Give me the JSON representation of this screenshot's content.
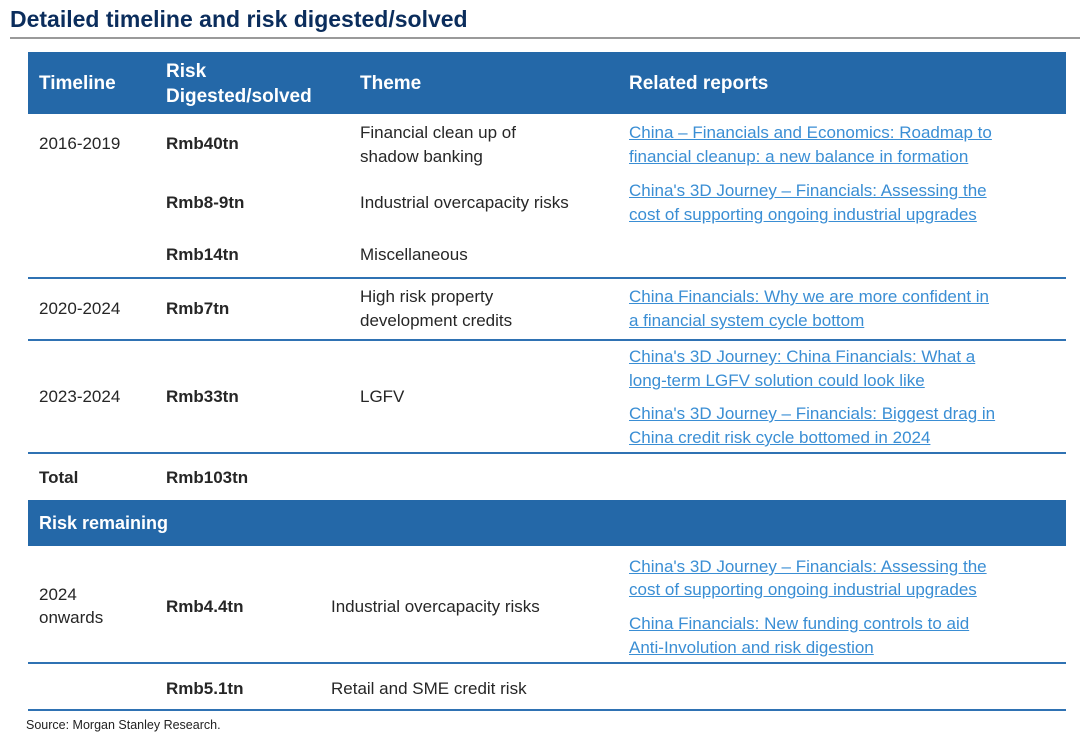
{
  "title": "Detailed timeline and risk digested/solved",
  "header": {
    "timeline": "Timeline",
    "risk_line1": "Risk",
    "risk_line2": "Digested/solved",
    "theme": "Theme",
    "reports": "Related reports"
  },
  "rows": [
    {
      "timeline": "2016-2019",
      "risk": "Rmb40tn",
      "theme1": "Financial clean up of",
      "theme2": "shadow banking",
      "links": [
        [
          "China – Financials and Economics: Roadmap to",
          "financial cleanup: a new balance in formation"
        ]
      ]
    },
    {
      "risk": "Rmb8-9tn",
      "theme1": "Industrial overcapacity risks",
      "links": [
        [
          "China's 3D Journey – Financials: Assessing the",
          "cost of supporting ongoing industrial upgrades"
        ]
      ]
    },
    {
      "risk": "Rmb14tn",
      "theme1": "Miscellaneous"
    },
    {
      "timeline": "2020-2024",
      "risk": "Rmb7tn",
      "theme1": "High risk property",
      "theme2": "development credits",
      "links": [
        [
          "China Financials: Why we are more confident in",
          "a financial system cycle bottom"
        ]
      ]
    },
    {
      "timeline": "2023-2024",
      "risk": "Rmb33tn",
      "theme1": "LGFV",
      "links": [
        [
          "China's 3D Journey: China Financials: What a",
          "long-term LGFV solution could look like"
        ],
        [
          "China's 3D Journey – Financials: Biggest drag in",
          "China credit risk cycle bottomed in 2024"
        ]
      ]
    }
  ],
  "total": {
    "label": "Total",
    "value": "Rmb103tn"
  },
  "remaining": {
    "label": "Risk remaining",
    "rows": [
      {
        "timeline1": "2024",
        "timeline2": "onwards",
        "risk": "Rmb4.4tn",
        "theme": "Industrial overcapacity risks",
        "links": [
          [
            "China's 3D Journey – Financials: Assessing the",
            "cost of supporting ongoing industrial upgrades"
          ],
          [
            "China Financials: New funding controls to aid",
            "Anti-Involution and risk digestion"
          ]
        ]
      },
      {
        "risk": "Rmb5.1tn",
        "theme": "Retail and SME credit risk"
      }
    ]
  },
  "source": "Source: Morgan Stanley Research.",
  "colors": {
    "header": "#2468a8",
    "title": "#0b2d5c",
    "link": "#3a8ed4",
    "rule": "#2f72b3"
  }
}
